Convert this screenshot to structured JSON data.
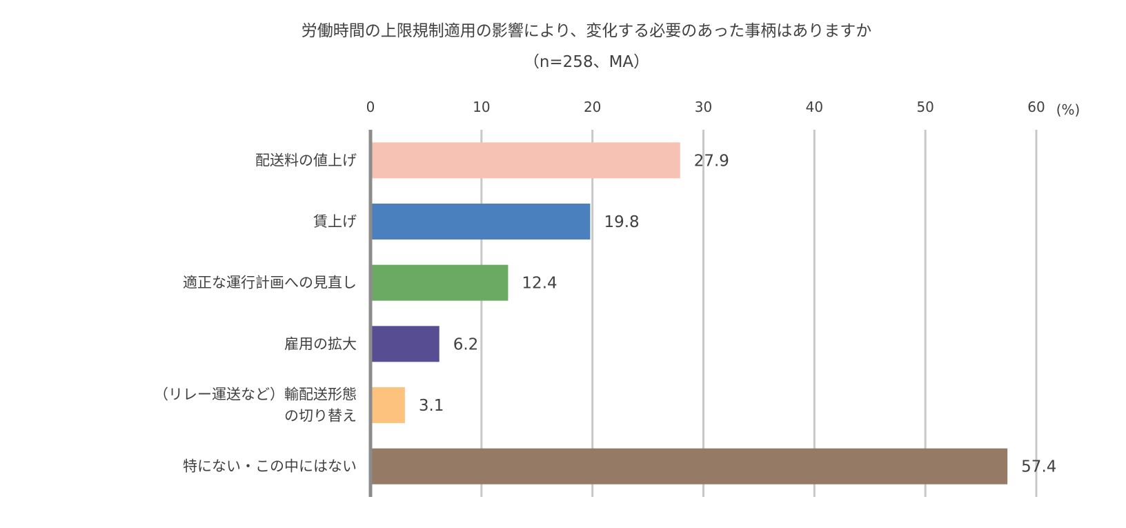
{
  "chart_data": {
    "type": "bar",
    "orientation": "horizontal",
    "title": "労働時間の上限規制適用の影響により、変化する必要のあった事柄はありますか",
    "subtitle": "（n=258、MA）",
    "unit_label": "(%)",
    "xlim": [
      0,
      60
    ],
    "ticks": [
      0,
      10,
      20,
      30,
      40,
      50,
      60
    ],
    "grid": true,
    "categories": [
      [
        "配送料の値上げ"
      ],
      [
        "賃上げ"
      ],
      [
        "適正な運行計画への見直し"
      ],
      [
        "雇用の拡大"
      ],
      [
        "（リレー運送など）輸配送形態",
        "の切り替え"
      ],
      [
        "特にない・この中にはない"
      ]
    ],
    "values": [
      27.9,
      19.8,
      12.4,
      6.2,
      3.1,
      57.4
    ],
    "value_labels": [
      "27.9",
      "19.8",
      "12.4",
      "6.2",
      "3.1",
      "57.4"
    ],
    "colors": [
      "#F6C2B3",
      "#4A80BE",
      "#6BAA62",
      "#564D93",
      "#FDC27D",
      "#957B66"
    ]
  }
}
